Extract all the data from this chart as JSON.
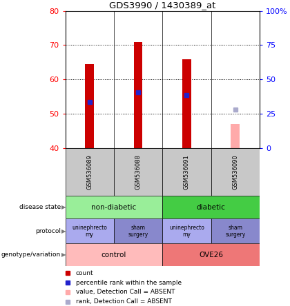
{
  "title": "GDS3990 / 1430389_at",
  "samples": [
    "GSM536089",
    "GSM536088",
    "GSM536091",
    "GSM536090"
  ],
  "bar_values": [
    64.5,
    70.8,
    65.8,
    null
  ],
  "bar_base": 40,
  "bar_color": "#cc0000",
  "bar_width": 0.18,
  "percentile_values": [
    53.5,
    56.2,
    55.5,
    null
  ],
  "percentile_color": "#2222cc",
  "absent_value": 47.0,
  "absent_bar_color": "#ffaaaa",
  "absent_rank_value": 51.2,
  "absent_rank_color": "#aaaacc",
  "ylim_left": [
    40,
    80
  ],
  "ylim_right": [
    0,
    100
  ],
  "yticks_left": [
    40,
    50,
    60,
    70,
    80
  ],
  "yticks_right": [
    0,
    25,
    50,
    75,
    100
  ],
  "grid_lines": [
    50,
    60,
    70
  ],
  "disease_state_colors": [
    "#99ee99",
    "#44cc44"
  ],
  "disease_state_labels": [
    "non-diabetic",
    "diabetic"
  ],
  "protocol_colors": [
    "#aaaaee",
    "#8888cc",
    "#aaaaee",
    "#8888cc"
  ],
  "protocol_labels": [
    "uninephrecto\nmy",
    "sham\nsurgery",
    "uninephrecto\nmy",
    "sham\nsurgery"
  ],
  "genotype_colors": [
    "#ffbbbb",
    "#ee7777"
  ],
  "genotype_labels": [
    "control",
    "OVE26"
  ],
  "row_labels": [
    "disease state",
    "protocol",
    "genotype/variation"
  ],
  "legend_items": [
    {
      "color": "#cc0000",
      "marker": "s",
      "label": "count"
    },
    {
      "color": "#2222cc",
      "marker": "s",
      "label": "percentile rank within the sample"
    },
    {
      "color": "#ffaaaa",
      "marker": "s",
      "label": "value, Detection Call = ABSENT"
    },
    {
      "color": "#aaaacc",
      "marker": "s",
      "label": "rank, Detection Call = ABSENT"
    }
  ],
  "fig_width": 4.2,
  "fig_height": 4.44,
  "dpi": 100
}
